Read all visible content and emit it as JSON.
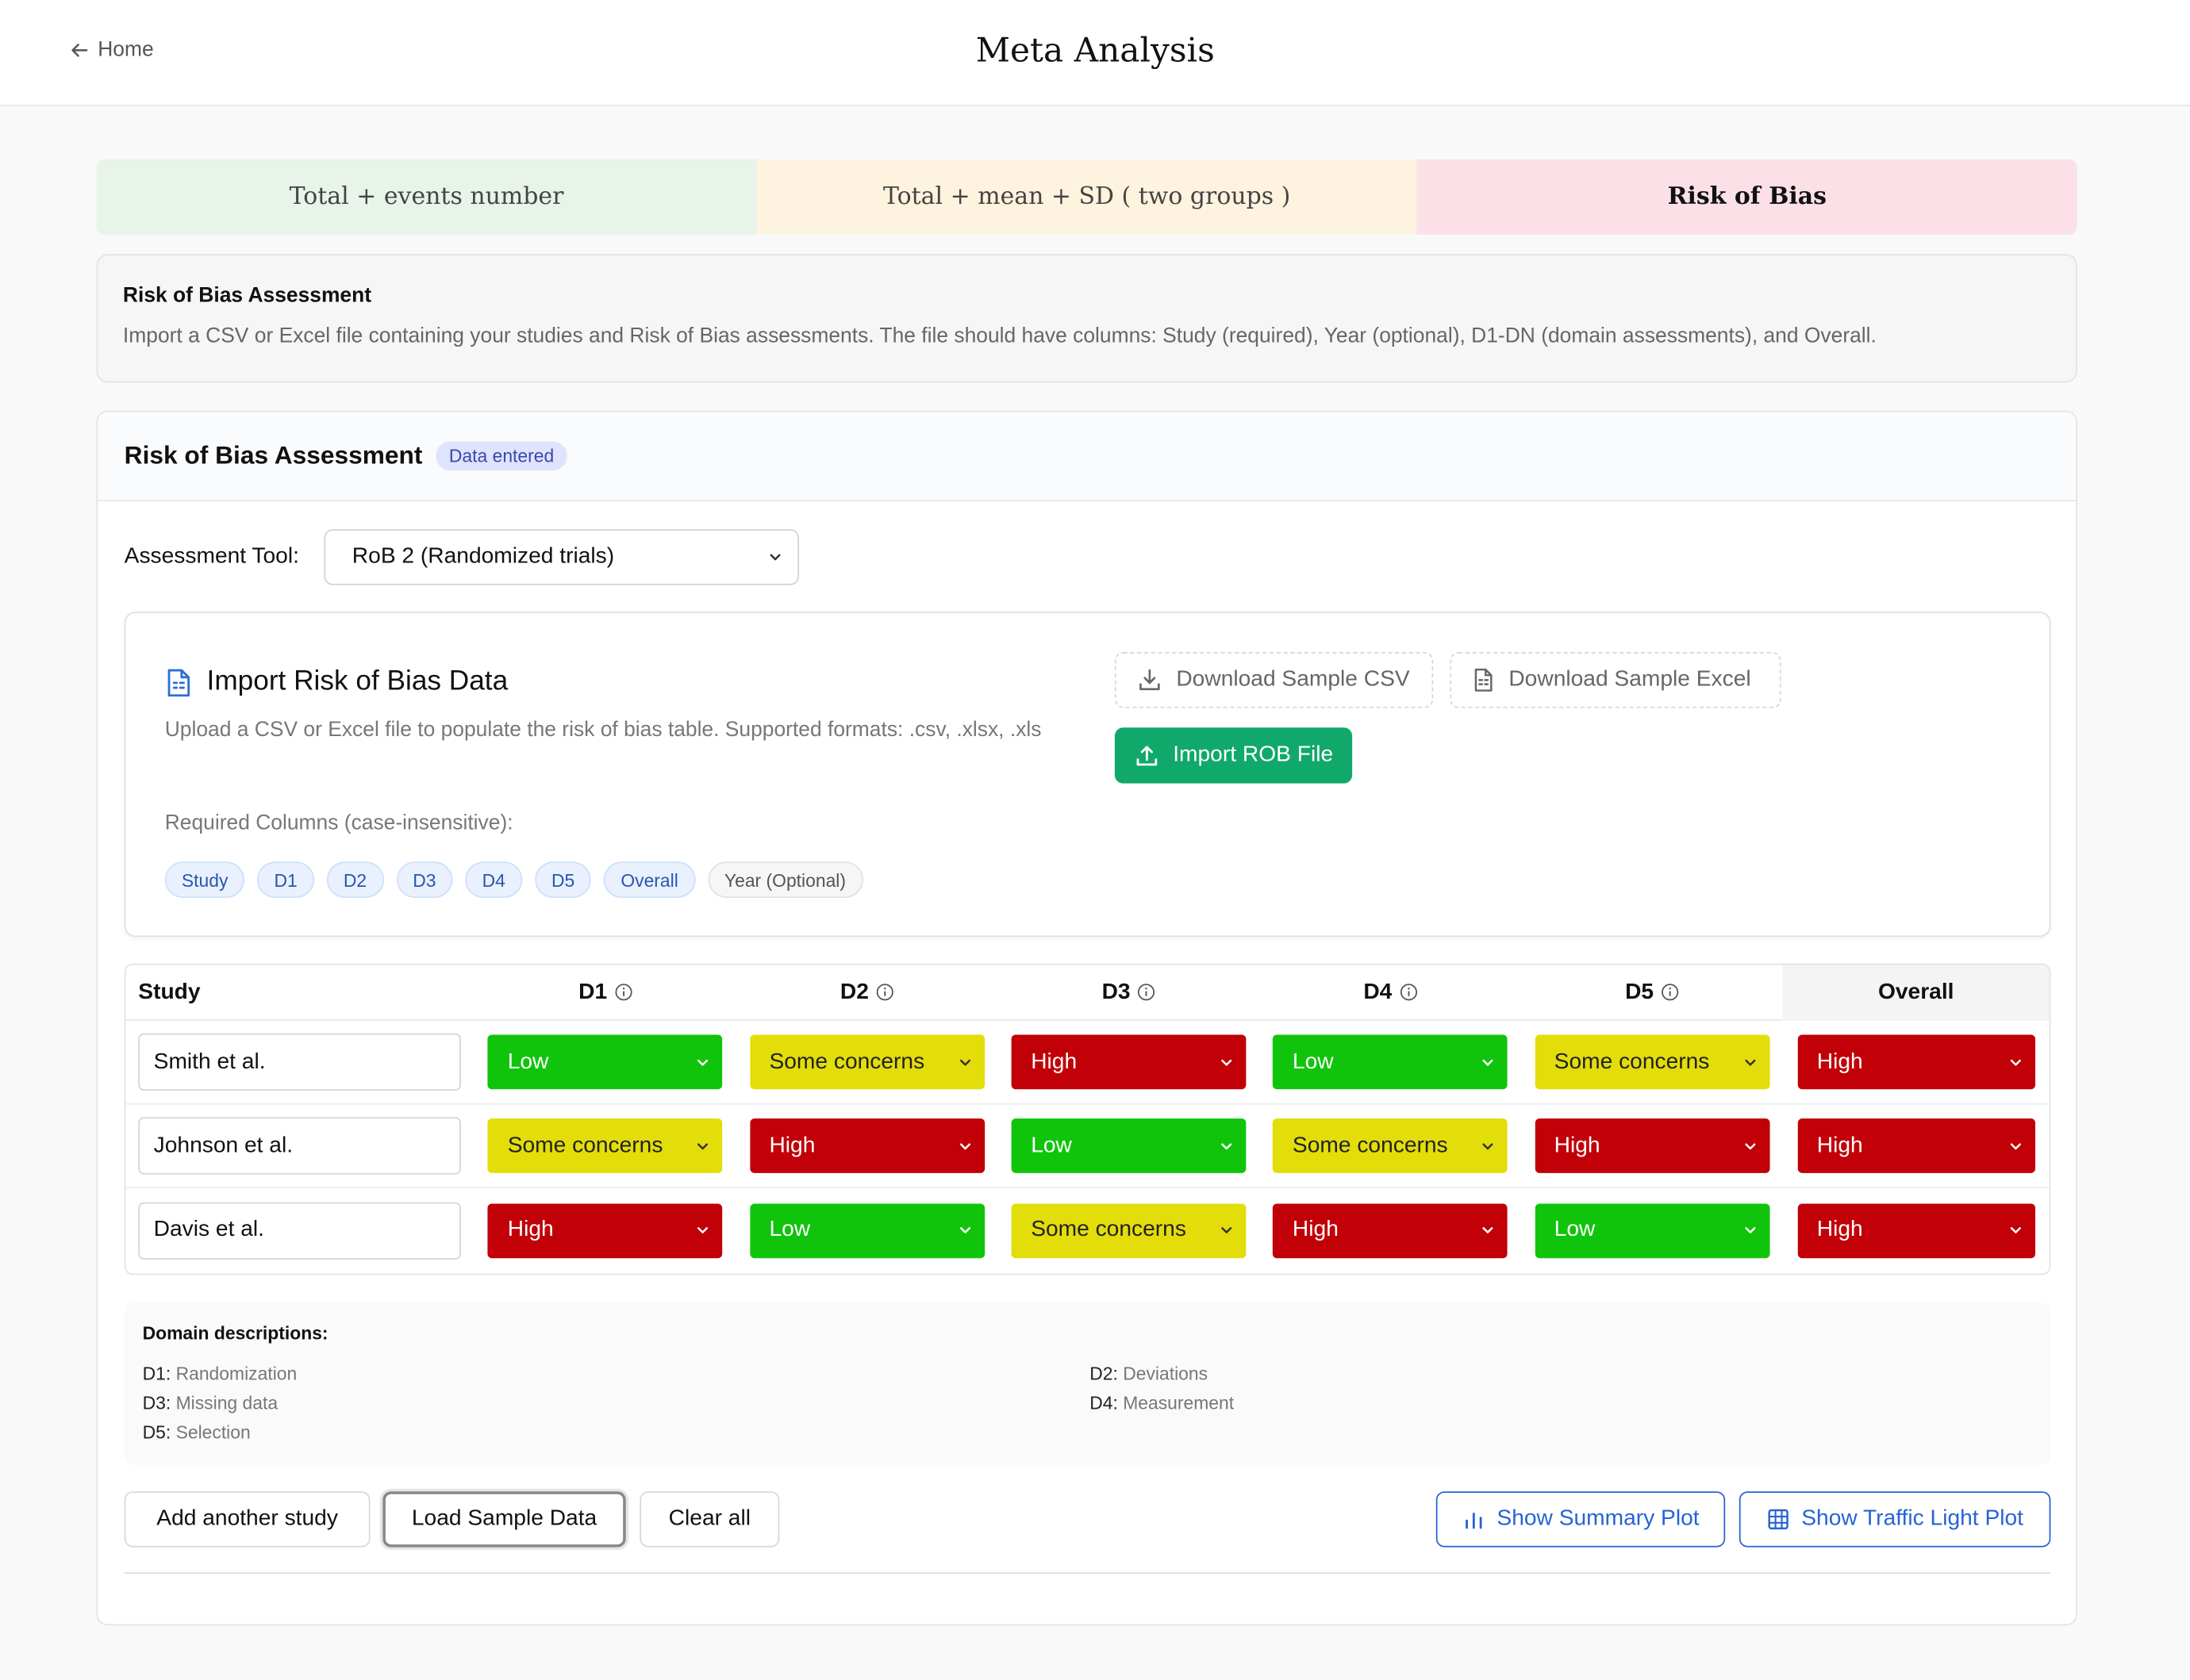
{
  "header": {
    "home_label": "Home",
    "title": "Meta Analysis"
  },
  "tabs": [
    {
      "label": "Total + events number"
    },
    {
      "label": "Total + mean + SD ( two groups )"
    },
    {
      "label": "Risk of Bias",
      "active": true
    }
  ],
  "info": {
    "title": "Risk of Bias Assessment",
    "description": "Import a CSV or Excel file containing your studies and Risk of Bias assessments. The file should have columns: Study (required), Year (optional), D1-DN (domain assessments), and Overall."
  },
  "main": {
    "title": "Risk of Bias Assessment",
    "badge": "Data entered",
    "tool_label": "Assessment Tool:",
    "tool_value": "RoB 2 (Randomized trials)"
  },
  "import": {
    "title": "Import Risk of Bias Data",
    "description": "Upload a CSV or Excel file to populate the risk of bias table. Supported formats: .csv, .xlsx, .xls",
    "required_label": "Required Columns (case-insensitive):",
    "chips": [
      "Study",
      "D1",
      "D2",
      "D3",
      "D4",
      "D5",
      "Overall"
    ],
    "optional_chip": "Year (Optional)",
    "download_csv": "Download Sample CSV",
    "download_excel": "Download Sample Excel",
    "import_button": "Import ROB File"
  },
  "table": {
    "headers": {
      "study": "Study",
      "d1": "D1",
      "d2": "D2",
      "d3": "D3",
      "d4": "D4",
      "d5": "D5",
      "overall": "Overall"
    },
    "rows": [
      {
        "study": "Smith et al.",
        "d1": "Low",
        "d2": "Some concerns",
        "d3": "High",
        "d4": "Low",
        "d5": "Some concerns",
        "overall": "High"
      },
      {
        "study": "Johnson et al.",
        "d1": "Some concerns",
        "d2": "High",
        "d3": "Low",
        "d4": "Some concerns",
        "d5": "High",
        "overall": "High"
      },
      {
        "study": "Davis et al.",
        "d1": "High",
        "d2": "Low",
        "d3": "Some concerns",
        "d4": "High",
        "d5": "Low",
        "overall": "High"
      }
    ]
  },
  "domains": {
    "title": "Domain descriptions:",
    "items": [
      {
        "key": "D1:",
        "text": "Randomization"
      },
      {
        "key": "D2:",
        "text": "Deviations"
      },
      {
        "key": "D3:",
        "text": "Missing data"
      },
      {
        "key": "D4:",
        "text": "Measurement"
      },
      {
        "key": "D5:",
        "text": "Selection"
      }
    ]
  },
  "actions": {
    "add_study": "Add another study",
    "load_sample": "Load Sample Data",
    "clear_all": "Clear all",
    "summary_plot": "Show Summary Plot",
    "traffic_plot": "Show Traffic Light Plot"
  },
  "colors": {
    "low": "#10c40c",
    "some_concerns": "#e3dd0a",
    "high": "#c10008",
    "import_green": "#10a96b",
    "accent_blue": "#2763d6"
  }
}
